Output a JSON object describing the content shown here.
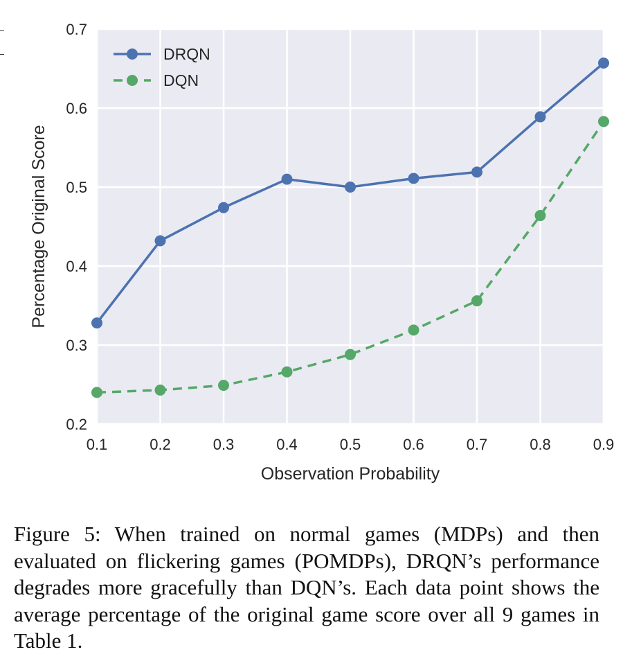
{
  "chart_data": {
    "type": "line",
    "x": [
      0.1,
      0.2,
      0.3,
      0.4,
      0.5,
      0.6,
      0.7,
      0.8,
      0.9
    ],
    "series": [
      {
        "name": "DRQN",
        "values": [
          0.328,
          0.432,
          0.474,
          0.51,
          0.5,
          0.511,
          0.519,
          0.589,
          0.657
        ],
        "color": "#4c72b0",
        "style": "solid",
        "marker": "circle"
      },
      {
        "name": "DQN",
        "values": [
          0.24,
          0.243,
          0.249,
          0.266,
          0.288,
          0.319,
          0.356,
          0.464,
          0.583
        ],
        "color": "#55a868",
        "style": "dashed",
        "marker": "circle"
      }
    ],
    "xlabel": "Observation Probability",
    "ylabel": "Percentage Original Score",
    "xlim": [
      0.1,
      0.9
    ],
    "ylim": [
      0.2,
      0.7
    ],
    "xticks": [
      "0.1",
      "0.2",
      "0.3",
      "0.4",
      "0.5",
      "0.6",
      "0.7",
      "0.8",
      "0.9"
    ],
    "yticks": [
      "0.2",
      "0.3",
      "0.4",
      "0.5",
      "0.6",
      "0.7"
    ],
    "grid": true,
    "legend_position": "top-left",
    "background_color": "#eaeaf2"
  },
  "caption": "Figure 5: When trained on normal games (MDPs) and then evaluated on flickering games (POMDPs), DRQN’s performance degrades more gracefully than DQN’s. Each data point shows the average percentage of the original game score over all 9 games in Table 1."
}
